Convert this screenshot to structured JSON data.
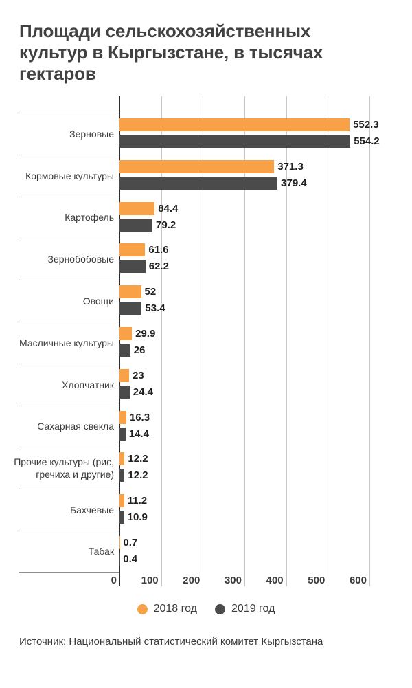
{
  "title": "Площади сельскохозяйственных культур в Кыргызстане, в тысячах гектаров",
  "title_lines": [
    "Площади сельскохозяйственных",
    "культур в Кыргызстане, в тысячах",
    "гектаров"
  ],
  "source": "Источник: Национальный статистический комитет Кыргызстана",
  "legend": {
    "items": [
      {
        "label": "2018 год",
        "color": "#F9A147"
      },
      {
        "label": "2019 год",
        "color": "#4B4B4B"
      }
    ]
  },
  "colors": {
    "bar_2018": "#F9A147",
    "bar_2019": "#4B4B4B",
    "grid": "#C6C6C6",
    "separator": "#8F8F8F",
    "axis_line": "#2D2D2D",
    "text": "#3B3B3B",
    "value_text": "#1F1F1F",
    "title_text": "#414144"
  },
  "chart_data": {
    "type": "bar",
    "orientation": "horizontal",
    "title": "Площади сельскохозяйственных культур в Кыргызстане, в тысячах гектаров",
    "categories": [
      "Зерновые",
      "Кормовые культуры",
      "Картофель",
      "Зернобобовые",
      "Овощи",
      "Масличные культуры",
      "Хлопчатник",
      "Сахарная свекла",
      "Прочие культуры (рис,\nгречиха и другие)",
      "Бахчевые",
      "Табак"
    ],
    "series": [
      {
        "name": "2018 год",
        "color": "#F9A147",
        "values": [
          552.3,
          371.3,
          84.4,
          61.6,
          52,
          29.9,
          23,
          16.3,
          12.2,
          11.2,
          0.7
        ]
      },
      {
        "name": "2019 год",
        "color": "#4B4B4B",
        "values": [
          554.2,
          379.4,
          79.2,
          62.2,
          53.4,
          26,
          24.4,
          14.4,
          12.2,
          10.9,
          0.4
        ]
      }
    ],
    "xlabel": "",
    "ylabel": "",
    "xlim": [
      0,
      600
    ],
    "x_ticks": [
      0,
      100,
      200,
      300,
      400,
      500,
      600
    ],
    "grid": true,
    "legend_position": "bottom",
    "value_labels_shown": true
  }
}
